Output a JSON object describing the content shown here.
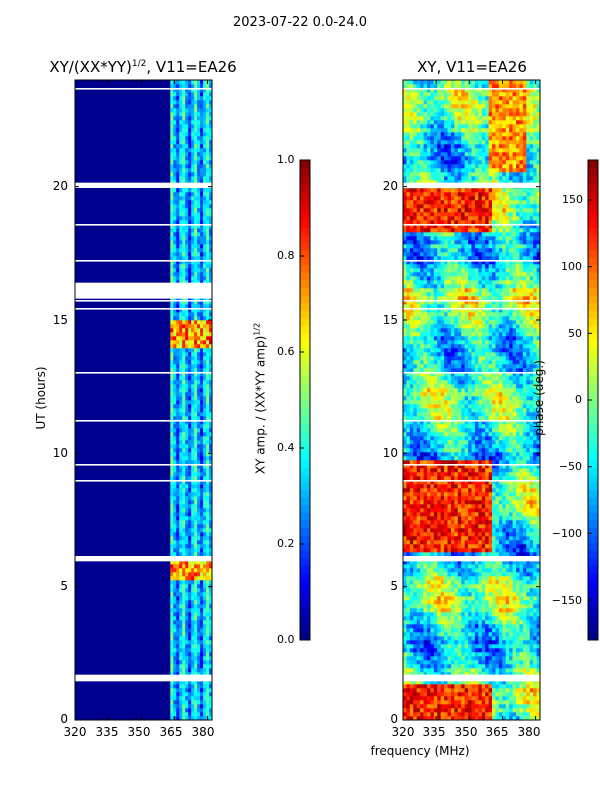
{
  "suptitle": "2023-07-22 0.0-24.0",
  "chart_data": [
    {
      "type": "heatmap",
      "title": "XY/(XX*YY)^{1/2}, V11=EA26",
      "title_main": "XY/(XX*YY)",
      "title_sup": "1/2",
      "title_tail": ", V11=EA26",
      "xlabel": "",
      "ylabel": "UT (hours)",
      "xlim": [
        320,
        382
      ],
      "ylim": [
        0,
        24
      ],
      "xticks": [
        "320",
        "335",
        "350",
        "365",
        "380"
      ],
      "yticks": [
        "0",
        "5",
        "10",
        "15",
        "20"
      ],
      "colorbar": {
        "label_main": "XY amp. / (XX*YY amp)",
        "label_sup": "1/2",
        "range": [
          0.0,
          1.0
        ],
        "ticks": [
          "0.0",
          "0.2",
          "0.4",
          "0.6",
          "0.8",
          "1.0"
        ]
      },
      "flagged_ut_bands": [
        [
          1.45,
          1.7
        ],
        [
          5.95,
          6.15
        ],
        [
          15.8,
          16.4
        ],
        [
          19.95,
          20.15
        ]
      ],
      "active_freq_band": [
        363,
        382
      ]
    },
    {
      "type": "heatmap",
      "title": "XY, V11=EA26",
      "xlabel": "frequency (MHz)",
      "ylabel": "",
      "xlim": [
        320,
        382
      ],
      "ylim": [
        0,
        24
      ],
      "xticks": [
        "320",
        "335",
        "350",
        "365",
        "380"
      ],
      "yticks": [
        "0",
        "5",
        "10",
        "15",
        "20"
      ],
      "colorbar": {
        "label": "phase (deg.)",
        "range": [
          -180,
          180
        ],
        "ticks": [
          "150",
          "100",
          "50",
          "0",
          "−50",
          "−100",
          "−150"
        ]
      },
      "flagged_ut_bands": [
        [
          1.45,
          1.7
        ],
        [
          5.95,
          6.15
        ],
        [
          19.95,
          20.15
        ]
      ]
    }
  ]
}
